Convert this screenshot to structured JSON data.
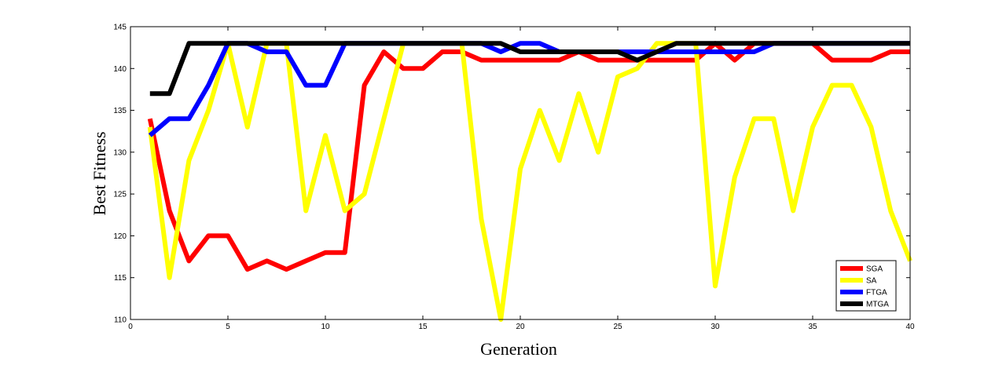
{
  "chart_data": {
    "type": "line",
    "xlabel": "Generation",
    "ylabel": "Best Fitness",
    "xlim": [
      0,
      40
    ],
    "ylim": [
      110,
      145
    ],
    "xticks": [
      0,
      5,
      10,
      15,
      20,
      25,
      30,
      35,
      40
    ],
    "yticks": [
      110,
      115,
      120,
      125,
      130,
      135,
      140,
      145
    ],
    "grid": false,
    "legend_position": "bottom-right",
    "x": [
      1,
      2,
      3,
      4,
      5,
      6,
      7,
      8,
      9,
      10,
      11,
      12,
      13,
      14,
      15,
      16,
      17,
      18,
      19,
      20,
      21,
      22,
      23,
      24,
      25,
      26,
      27,
      28,
      29,
      30,
      31,
      32,
      33,
      34,
      35,
      36,
      37,
      38,
      39,
      40
    ],
    "series": [
      {
        "name": "SGA",
        "color": "#ff0000",
        "values": [
          134,
          123,
          117,
          120,
          120,
          116,
          117,
          116,
          117,
          118,
          118,
          138,
          142,
          140,
          140,
          142,
          142,
          141,
          141,
          141,
          141,
          141,
          142,
          141,
          141,
          141,
          141,
          141,
          141,
          143,
          141,
          143,
          143,
          143,
          143,
          141,
          141,
          141,
          142,
          142
        ]
      },
      {
        "name": "SA",
        "color": "#ffff00",
        "values": [
          133,
          115,
          129,
          135,
          143,
          133,
          143,
          143,
          123,
          132,
          123,
          125,
          134,
          143,
          143,
          143,
          143,
          122,
          110,
          128,
          135,
          129,
          137,
          130,
          139,
          140,
          143,
          143,
          143,
          114,
          127,
          134,
          134,
          123,
          133,
          138,
          138,
          133,
          123,
          117
        ]
      },
      {
        "name": "FTGA",
        "color": "#0000ff",
        "values": [
          132,
          134,
          134,
          138,
          143,
          143,
          142,
          142,
          138,
          138,
          143,
          143,
          143,
          143,
          143,
          143,
          143,
          143,
          142,
          143,
          143,
          142,
          142,
          142,
          142,
          142,
          142,
          142,
          142,
          142,
          142,
          142,
          143,
          143,
          143,
          143,
          143,
          143,
          143,
          143
        ]
      },
      {
        "name": "MTGA",
        "color": "#000000",
        "values": [
          137,
          137,
          143,
          143,
          143,
          143,
          143,
          143,
          143,
          143,
          143,
          143,
          143,
          143,
          143,
          143,
          143,
          143,
          143,
          142,
          142,
          142,
          142,
          142,
          142,
          141,
          142,
          143,
          143,
          143,
          143,
          143,
          143,
          143,
          143,
          143,
          143,
          143,
          143,
          143
        ]
      }
    ]
  }
}
